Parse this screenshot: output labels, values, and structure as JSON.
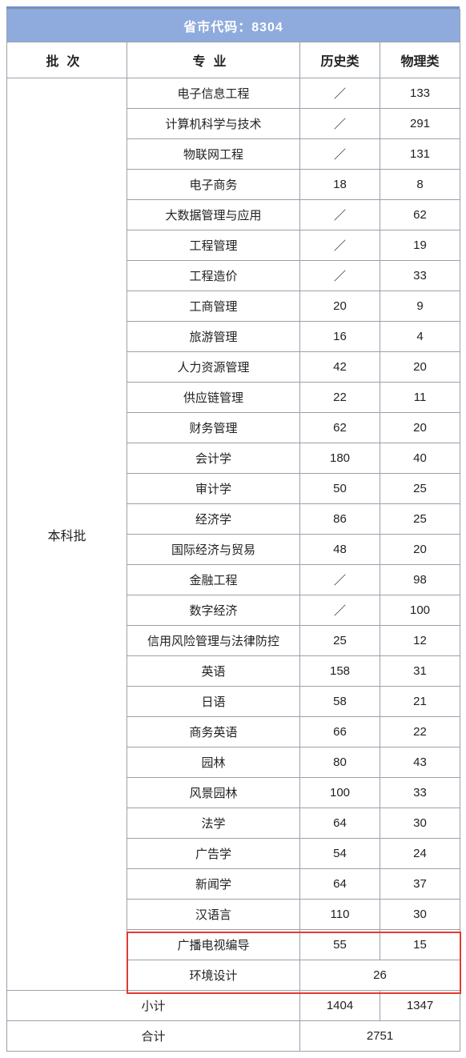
{
  "title": "省市代码：8304",
  "headers": {
    "batch": "批次",
    "major": "专业",
    "history": "历史类",
    "physics": "物理类"
  },
  "batch_label": "本科批",
  "rows": [
    {
      "major": "电子信息工程",
      "history": "／",
      "physics": "133"
    },
    {
      "major": "计算机科学与技术",
      "history": "／",
      "physics": "291"
    },
    {
      "major": "物联网工程",
      "history": "／",
      "physics": "131"
    },
    {
      "major": "电子商务",
      "history": "18",
      "physics": "8"
    },
    {
      "major": "大数据管理与应用",
      "history": "／",
      "physics": "62"
    },
    {
      "major": "工程管理",
      "history": "／",
      "physics": "19"
    },
    {
      "major": "工程造价",
      "history": "／",
      "physics": "33"
    },
    {
      "major": "工商管理",
      "history": "20",
      "physics": "9"
    },
    {
      "major": "旅游管理",
      "history": "16",
      "physics": "4"
    },
    {
      "major": "人力资源管理",
      "history": "42",
      "physics": "20"
    },
    {
      "major": "供应链管理",
      "history": "22",
      "physics": "11"
    },
    {
      "major": "财务管理",
      "history": "62",
      "physics": "20"
    },
    {
      "major": "会计学",
      "history": "180",
      "physics": "40"
    },
    {
      "major": "审计学",
      "history": "50",
      "physics": "25"
    },
    {
      "major": "经济学",
      "history": "86",
      "physics": "25"
    },
    {
      "major": "国际经济与贸易",
      "history": "48",
      "physics": "20"
    },
    {
      "major": "金融工程",
      "history": "／",
      "physics": "98"
    },
    {
      "major": "数字经济",
      "history": "／",
      "physics": "100"
    },
    {
      "major": "信用风险管理与法律防控",
      "history": "25",
      "physics": "12"
    },
    {
      "major": "英语",
      "history": "158",
      "physics": "31"
    },
    {
      "major": "日语",
      "history": "58",
      "physics": "21"
    },
    {
      "major": "商务英语",
      "history": "66",
      "physics": "22"
    },
    {
      "major": "园林",
      "history": "80",
      "physics": "43"
    },
    {
      "major": "风景园林",
      "history": "100",
      "physics": "33"
    },
    {
      "major": "法学",
      "history": "64",
      "physics": "30"
    },
    {
      "major": "广告学",
      "history": "54",
      "physics": "24"
    },
    {
      "major": "新闻学",
      "history": "64",
      "physics": "37"
    },
    {
      "major": "汉语言",
      "history": "110",
      "physics": "30"
    }
  ],
  "highlight_rows": [
    {
      "major": "广播电视编导",
      "history": "55",
      "physics": "15"
    },
    {
      "major": "环境设计",
      "merged": "26"
    }
  ],
  "subtotal": {
    "label": "小计",
    "history": "1404",
    "physics": "1347"
  },
  "total": {
    "label": "合计",
    "value": "2751"
  },
  "style": {
    "accent": "#6f90cc",
    "header_bg": "#8fabdd",
    "border": "#9aa0aa",
    "highlight": "#e43a2f",
    "col_widths": {
      "batch": 150,
      "major": 216,
      "history": 100,
      "physics": 100
    }
  }
}
